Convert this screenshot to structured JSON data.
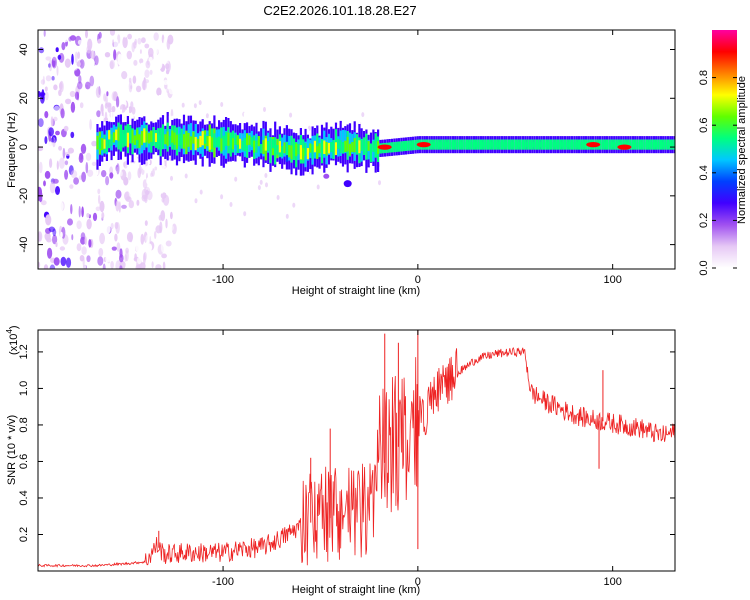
{
  "figure_title": "C2E2.2026.101.18.28.E27",
  "chart_data": [
    {
      "type": "heatmap",
      "name": "spectrogram",
      "title": "C2E2.2026.101.18.28.E27",
      "xlabel": "Height of straight line (km)",
      "ylabel": "Frequency (Hz)",
      "xlim": [
        -195,
        132
      ],
      "ylim": [
        -50,
        48
      ],
      "xticks": [
        -100,
        0,
        100
      ],
      "xtick_labels": [
        "-100",
        "0",
        "100"
      ],
      "yticks": [
        -40,
        -20,
        0,
        20,
        40
      ],
      "ytick_labels": [
        "-40",
        "-20",
        "0",
        "20",
        "40"
      ],
      "colorbar": {
        "label": "Normalized spectral amplitude",
        "range": [
          0,
          1
        ],
        "ticks": [
          0,
          0.2,
          0.4,
          0.6,
          0.8
        ],
        "tick_labels": [
          "0.0",
          "0.2",
          "0.4",
          "0.6",
          "0.8"
        ],
        "colors": [
          "#ffffff",
          "#e6c8f5",
          "#a050f0",
          "#4000ff",
          "#0040ff",
          "#00c8ff",
          "#00ff80",
          "#60ff00",
          "#ffff00",
          "#ff8000",
          "#ff0000",
          "#ff00a0"
        ]
      },
      "features": {
        "noise_region_x": [
          -195,
          -135
        ],
        "ridge": [
          {
            "x": -160,
            "freq": 4
          },
          {
            "x": -120,
            "freq": 3
          },
          {
            "x": -90,
            "freq": 2
          },
          {
            "x": -60,
            "freq": -2
          },
          {
            "x": -40,
            "freq": 1
          },
          {
            "x": -25,
            "freq": -1
          },
          {
            "x": 0,
            "freq": 1
          },
          {
            "x": 40,
            "freq": 1
          },
          {
            "x": 90,
            "freq": 1
          },
          {
            "x": 132,
            "freq": 1
          }
        ],
        "hot_spots": [
          {
            "x": -17,
            "freq": 0,
            "amp": 0.95
          },
          {
            "x": 3,
            "freq": 1,
            "amp": 0.95
          },
          {
            "x": 90,
            "freq": 1,
            "amp": 1.0
          },
          {
            "x": 106,
            "freq": 0,
            "amp": 1.0
          }
        ]
      }
    },
    {
      "type": "line",
      "name": "snr",
      "xlabel": "Height of straight line (km)",
      "ylabel": "SNR (10 * v/v)",
      "y_scale_label": "(x10",
      "y_scale_exponent": "4",
      "y_scale_suffix": ")",
      "xlim": [
        -195,
        132
      ],
      "ylim": [
        0,
        1.32
      ],
      "xticks": [
        -100,
        0,
        100
      ],
      "xtick_labels": [
        "-100",
        "0",
        "100"
      ],
      "yticks": [
        0.2,
        0.4,
        0.6,
        0.8,
        1.0,
        1.2
      ],
      "ytick_labels": [
        "0.2",
        "0.4",
        "0.6",
        "0.8",
        "1.0",
        "1.2"
      ],
      "color": "#ee2222",
      "series": [
        {
          "name": "SNR",
          "x": [
            -195,
            -180,
            -165,
            -150,
            -140,
            -134,
            -130,
            -120,
            -110,
            -100,
            -90,
            -80,
            -70,
            -60,
            -50,
            -40,
            -30,
            -25,
            -20,
            -15,
            -10,
            -5,
            0,
            5,
            10,
            20,
            30,
            40,
            50,
            55,
            58,
            65,
            75,
            85,
            95,
            105,
            115,
            125,
            132
          ],
          "y": [
            0.03,
            0.03,
            0.03,
            0.04,
            0.05,
            0.14,
            0.09,
            0.1,
            0.1,
            0.1,
            0.12,
            0.13,
            0.18,
            0.25,
            0.28,
            0.3,
            0.3,
            0.3,
            0.55,
            0.62,
            0.68,
            0.7,
            0.8,
            0.88,
            0.98,
            1.08,
            1.16,
            1.19,
            1.2,
            1.2,
            0.98,
            0.93,
            0.88,
            0.84,
            0.82,
            0.8,
            0.78,
            0.74,
            0.76
          ]
        }
      ],
      "spikes": [
        {
          "x": -133,
          "y": 0.22
        },
        {
          "x": -55,
          "y": 0.62
        },
        {
          "x": -45,
          "y": 0.78
        },
        {
          "x": -17,
          "y": 1.3
        },
        {
          "x": -10,
          "y": 1.25
        },
        {
          "x": 0,
          "y": 1.32
        },
        {
          "x": 0,
          "y": 0.12
        },
        {
          "x": 93,
          "y": 0.56
        },
        {
          "x": 95,
          "y": 1.1
        }
      ]
    }
  ]
}
